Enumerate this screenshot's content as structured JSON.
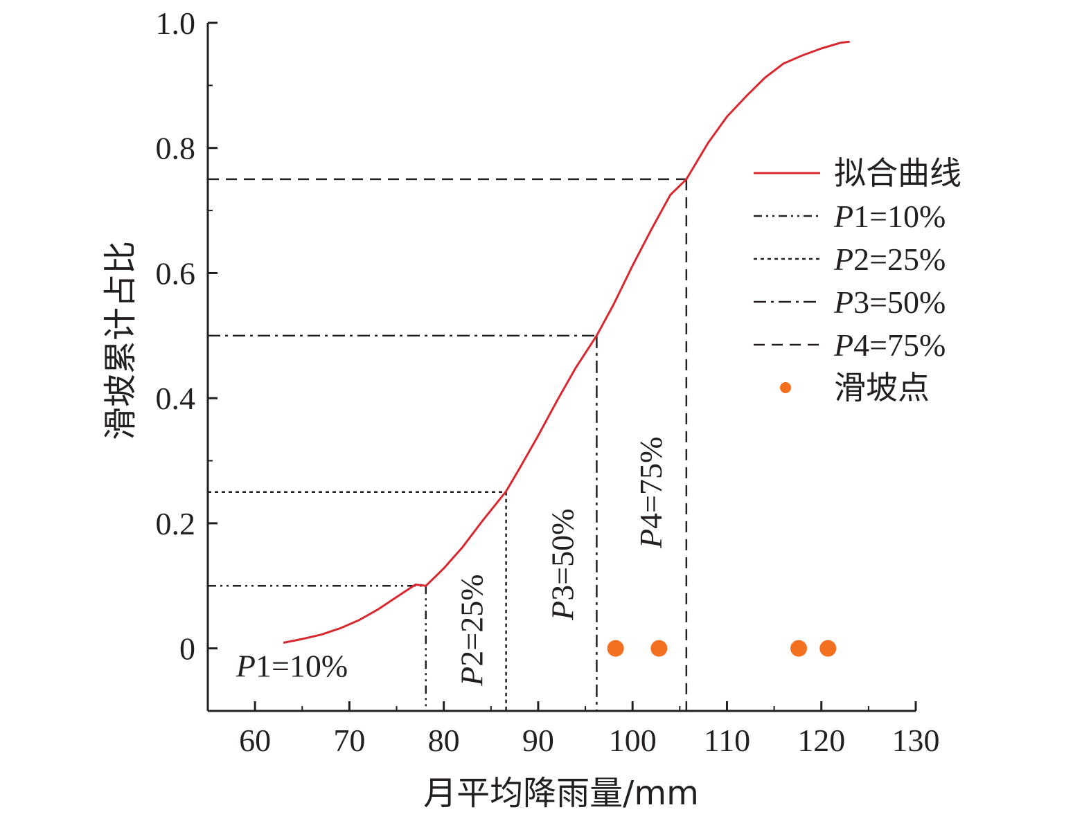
{
  "chart_data": {
    "type": "line",
    "xlabel": "月平均降雨量/mm",
    "ylabel": "滑坡累计占比",
    "xlim": [
      55,
      130
    ],
    "ylim": [
      -0.1,
      1.0
    ],
    "xticks": [
      60,
      70,
      80,
      90,
      100,
      110,
      120,
      130
    ],
    "yticks": [
      0,
      0.2,
      0.4,
      0.6,
      0.8,
      1.0
    ],
    "xtick_labels": [
      "60",
      "70",
      "80",
      "90",
      "100",
      "110",
      "120",
      "130"
    ],
    "ytick_labels": [
      "0",
      "0.2",
      "0.4",
      "0.6",
      "0.8",
      "1.0"
    ],
    "legend_position": "right",
    "series": [
      {
        "name": "拟合曲线",
        "kind": "line",
        "color": "#d7282f",
        "x": [
          63,
          65,
          67,
          69,
          71,
          73,
          75,
          77,
          78.1,
          80,
          82,
          84,
          86.6,
          88,
          90,
          92,
          94,
          96.2,
          98,
          100,
          102,
          104,
          105.7,
          108,
          110,
          112,
          114,
          116,
          118,
          120,
          122,
          123
        ],
        "y": [
          0.009,
          0.015,
          0.022,
          0.032,
          0.045,
          0.062,
          0.082,
          0.102,
          0.1,
          0.128,
          0.162,
          0.202,
          0.251,
          0.287,
          0.34,
          0.396,
          0.449,
          0.5,
          0.55,
          0.612,
          0.67,
          0.725,
          0.75,
          0.808,
          0.85,
          0.882,
          0.912,
          0.935,
          0.948,
          0.959,
          0.968,
          0.97
        ]
      },
      {
        "name": "滑坡点",
        "kind": "scatter",
        "color": "#f37021",
        "x": [
          98.2,
          102.8,
          117.6,
          120.7
        ],
        "y": [
          0,
          0,
          0,
          0
        ]
      }
    ],
    "percentiles": [
      {
        "id": "P1",
        "name_prefix": "P",
        "name_rest": "1=10%",
        "x": 78.1,
        "y": 0.1,
        "dash": "12 6 3 6 3 6",
        "annot_prefix": "P",
        "annot_rest": "1=10%",
        "annot_mode": "horizontal"
      },
      {
        "id": "P2",
        "name_prefix": "P",
        "name_rest": "2=25%",
        "x": 86.6,
        "y": 0.25,
        "dash": "5 5",
        "annot_prefix": "P",
        "annot_rest": "2=25%",
        "annot_mode": "vertical"
      },
      {
        "id": "P3",
        "name_prefix": "P",
        "name_rest": "3=50%",
        "x": 96.2,
        "y": 0.5,
        "dash": "18 7 4 7",
        "annot_prefix": "P",
        "annot_rest": "3=50%",
        "annot_mode": "vertical"
      },
      {
        "id": "P4",
        "name_prefix": "P",
        "name_rest": "4=75%",
        "x": 105.7,
        "y": 0.75,
        "dash": "16 10",
        "annot_prefix": "P",
        "annot_rest": "4=75%",
        "annot_mode": "vertical"
      }
    ]
  }
}
